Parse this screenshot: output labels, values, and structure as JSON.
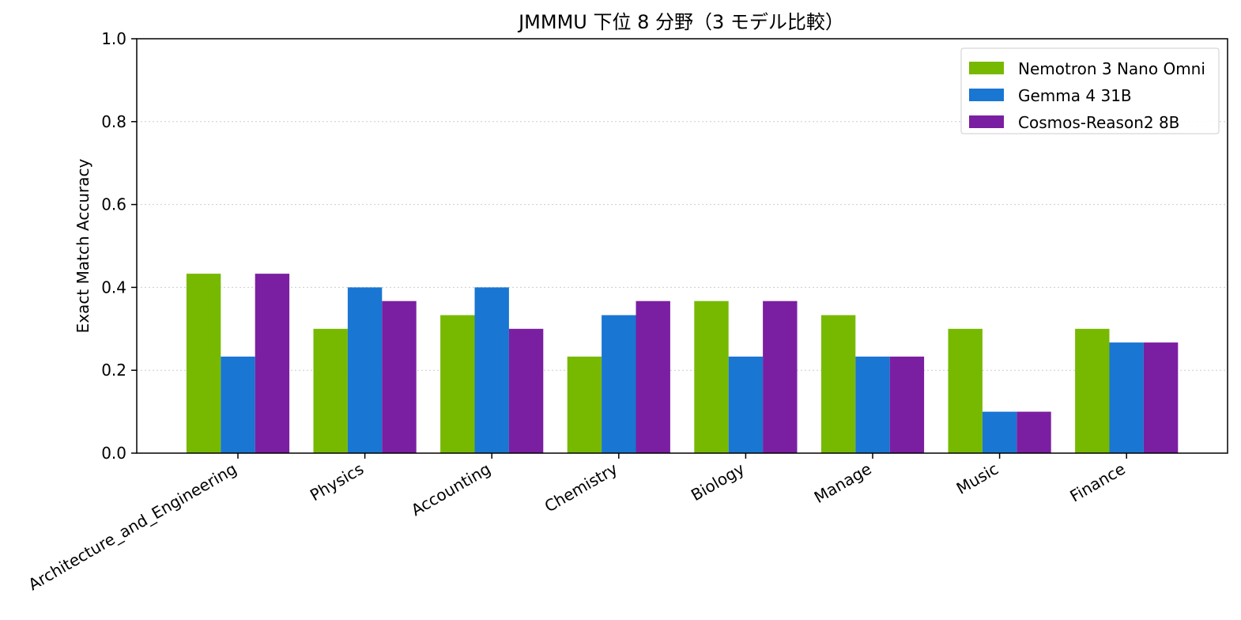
{
  "chart_data": {
    "type": "bar",
    "title": "JMMMU 下位 8 分野（3 モデル比較）",
    "xlabel": "",
    "ylabel": "Exact Match Accuracy",
    "ylim": [
      0,
      1.0
    ],
    "yticks": [
      "0.0",
      "0.2",
      "0.4",
      "0.6",
      "0.8",
      "1.0"
    ],
    "grid": "horizontal dotted",
    "legend_position": "top-right",
    "categories": [
      "Architecture_and_Engineering",
      "Physics",
      "Accounting",
      "Chemistry",
      "Biology",
      "Manage",
      "Music",
      "Finance"
    ],
    "series": [
      {
        "name": "Nemotron 3 Nano Omni",
        "color": "#76b900",
        "values": [
          0.433,
          0.3,
          0.333,
          0.233,
          0.367,
          0.333,
          0.3,
          0.3
        ]
      },
      {
        "name": "Gemma 4 31B",
        "color": "#1976d2",
        "values": [
          0.233,
          0.4,
          0.4,
          0.333,
          0.233,
          0.233,
          0.1,
          0.267
        ]
      },
      {
        "name": "Cosmos-Reason2 8B",
        "color": "#7b1fa2",
        "values": [
          0.433,
          0.367,
          0.3,
          0.367,
          0.367,
          0.233,
          0.1,
          0.267
        ]
      }
    ]
  }
}
